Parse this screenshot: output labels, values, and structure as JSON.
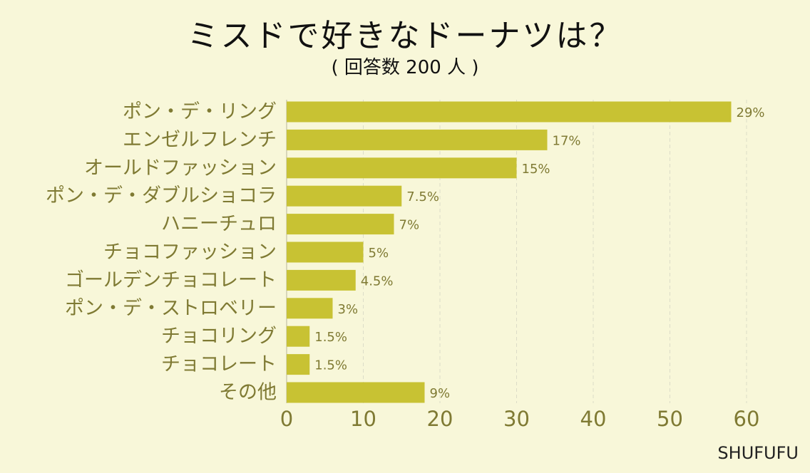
{
  "title": "ミスドで好きなドーナツは？",
  "subtitle": "( 回答数 200 人 )",
  "watermark": "SHUFUFU",
  "colors": {
    "background": "#f8f7d9",
    "bar": "#c8c233",
    "axis_text": "#7f7a33",
    "grid": "#dcdcc8"
  },
  "chart_data": {
    "type": "bar",
    "orientation": "horizontal",
    "title": "ミスドで好きなドーナツは？",
    "subtitle": "( 回答数 200 人 )",
    "categories": [
      "ポン・デ・リング",
      "エンゼルフレンチ",
      "オールドファッション",
      "ポン・デ・ダブルショコラ",
      "ハニーチュロ",
      "チョコファッション",
      "ゴールデンチョコレート",
      "ポン・デ・ストロベリー",
      "チョコリング",
      "チョコレート",
      "その他"
    ],
    "values": [
      58,
      34,
      30,
      15,
      14,
      10,
      9,
      6,
      3,
      3,
      18
    ],
    "data_labels": [
      "29%",
      "17%",
      "15%",
      "7.5%",
      "7%",
      "5%",
      "4.5%",
      "3%",
      "1.5%",
      "1.5%",
      "9%"
    ],
    "xlim": [
      0,
      60
    ],
    "xticks": [
      0,
      10,
      20,
      30,
      40,
      50,
      60
    ],
    "grid": "vertical dashed"
  }
}
